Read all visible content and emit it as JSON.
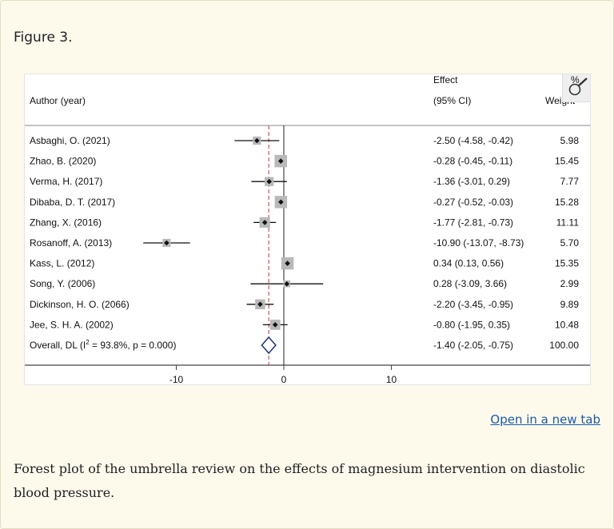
{
  "figure_label": "Figure 3.",
  "open_link_label": "Open in a new tab",
  "caption": "Forest plot of the umbrella review on the effects of magnesium intervention on diastolic blood pressure.",
  "magnify": {
    "glyph": "%",
    "icon": "magnify-icon"
  },
  "chart_data": {
    "type": "forest",
    "column_headers": {
      "author": "Author (year)",
      "effect_line1": "Effect",
      "effect_line2": "(95% CI)",
      "weight": "Weight"
    },
    "x_ticks": [
      -10,
      0,
      10
    ],
    "xlim": [
      -20,
      20
    ],
    "null_line": 0,
    "overall_line": -1.4,
    "studies": [
      {
        "author": "Asbaghi, O. (2021)",
        "effect": -2.5,
        "lo": -4.58,
        "hi": -0.42,
        "ci_label": "-2.50 (-4.58, -0.42)",
        "weight": 5.98,
        "weight_label": "5.98"
      },
      {
        "author": "Zhao, B. (2020)",
        "effect": -0.28,
        "lo": -0.45,
        "hi": -0.11,
        "ci_label": "-0.28 (-0.45, -0.11)",
        "weight": 15.45,
        "weight_label": "15.45"
      },
      {
        "author": "Verma, H. (2017)",
        "effect": -1.36,
        "lo": -3.01,
        "hi": 0.29,
        "ci_label": "-1.36 (-3.01, 0.29)",
        "weight": 7.77,
        "weight_label": "7.77"
      },
      {
        "author": "Dibaba, D. T. (2017)",
        "effect": -0.27,
        "lo": -0.52,
        "hi": -0.03,
        "ci_label": "-0.27 (-0.52, -0.03)",
        "weight": 15.28,
        "weight_label": "15.28"
      },
      {
        "author": "Zhang, X. (2016)",
        "effect": -1.77,
        "lo": -2.81,
        "hi": -0.73,
        "ci_label": "-1.77 (-2.81, -0.73)",
        "weight": 11.11,
        "weight_label": "11.11"
      },
      {
        "author": "Rosanoff, A. (2013)",
        "effect": -10.9,
        "lo": -13.07,
        "hi": -8.73,
        "ci_label": "-10.90 (-13.07, -8.73)",
        "weight": 5.7,
        "weight_label": "5.70"
      },
      {
        "author": "Kass, L. (2012)",
        "effect": 0.34,
        "lo": 0.13,
        "hi": 0.56,
        "ci_label": "0.34 (0.13, 0.56)",
        "weight": 15.35,
        "weight_label": "15.35"
      },
      {
        "author": "Song, Y. (2006)",
        "effect": 0.28,
        "lo": -3.09,
        "hi": 3.66,
        "ci_label": "0.28 (-3.09, 3.66)",
        "weight": 2.99,
        "weight_label": "2.99"
      },
      {
        "author": "Dickinson, H. O. (2066)",
        "effect": -2.2,
        "lo": -3.45,
        "hi": -0.95,
        "ci_label": "-2.20 (-3.45, -0.95)",
        "weight": 9.89,
        "weight_label": "9.89"
      },
      {
        "author": "Jee, S. H. A. (2002)",
        "effect": -0.8,
        "lo": -1.95,
        "hi": 0.35,
        "ci_label": "-0.80 (-1.95, 0.35)",
        "weight": 10.48,
        "weight_label": "10.48"
      }
    ],
    "overall": {
      "label_prefix": "Overall, DL (I",
      "label_sup": "2",
      "label_suffix": " = 93.8%, p = 0.000)",
      "effect": -1.4,
      "lo": -2.05,
      "hi": -0.75,
      "ci_label": "-1.40 (-2.05, -0.75)",
      "weight_label": "100.00"
    }
  }
}
